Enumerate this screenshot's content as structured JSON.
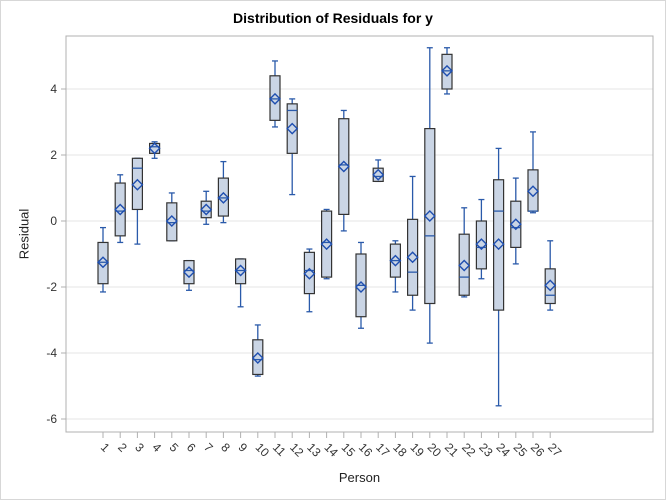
{
  "chart_data": {
    "type": "box",
    "title": "Distribution of Residuals for y",
    "xlabel": "Person",
    "ylabel": "Residual",
    "ylim": [
      -6.4,
      5.5
    ],
    "yticks": [
      -6,
      -4,
      -2,
      0,
      2,
      4
    ],
    "grid": true,
    "categories": [
      "1",
      "2",
      "3",
      "4",
      "5",
      "6",
      "7",
      "8",
      "9",
      "10",
      "11",
      "12",
      "13",
      "14",
      "15",
      "16",
      "17",
      "18",
      "19",
      "20",
      "21",
      "22",
      "23",
      "24",
      "25",
      "26",
      "27"
    ],
    "series": [
      {
        "person": "1",
        "min": -2.15,
        "q1": -1.9,
        "median": -1.25,
        "q3": -0.65,
        "max": -0.2,
        "mean": -1.25
      },
      {
        "person": "2",
        "min": -0.65,
        "q1": -0.45,
        "median": 0.3,
        "q3": 1.15,
        "max": 1.4,
        "mean": 0.35
      },
      {
        "person": "3",
        "min": -0.7,
        "q1": 0.35,
        "median": 1.6,
        "q3": 1.9,
        "max": 1.9,
        "mean": 1.1
      },
      {
        "person": "4",
        "min": 1.9,
        "q1": 2.05,
        "median": 2.25,
        "q3": 2.35,
        "max": 2.4,
        "mean": 2.2
      },
      {
        "person": "5",
        "min": -0.6,
        "q1": -0.6,
        "median": -0.05,
        "q3": 0.55,
        "max": 0.85,
        "mean": 0.0
      },
      {
        "person": "6",
        "min": -2.1,
        "q1": -1.9,
        "median": -1.5,
        "q3": -1.2,
        "max": -1.2,
        "mean": -1.55
      },
      {
        "person": "7",
        "min": -0.1,
        "q1": 0.1,
        "median": 0.3,
        "q3": 0.6,
        "max": 0.9,
        "mean": 0.35
      },
      {
        "person": "8",
        "min": -0.05,
        "q1": 0.15,
        "median": 0.7,
        "q3": 1.3,
        "max": 1.8,
        "mean": 0.7
      },
      {
        "person": "9",
        "min": -2.6,
        "q1": -1.9,
        "median": -1.5,
        "q3": -1.15,
        "max": -1.15,
        "mean": -1.5
      },
      {
        "person": "10",
        "min": -4.7,
        "q1": -4.65,
        "median": -4.2,
        "q3": -3.6,
        "max": -3.15,
        "mean": -4.15
      },
      {
        "person": "11",
        "min": 2.85,
        "q1": 3.05,
        "median": 3.7,
        "q3": 4.4,
        "max": 4.85,
        "mean": 3.7
      },
      {
        "person": "12",
        "min": 0.8,
        "q1": 2.05,
        "median": 3.35,
        "q3": 3.55,
        "max": 3.7,
        "mean": 2.8
      },
      {
        "person": "13",
        "min": -2.75,
        "q1": -2.2,
        "median": -1.5,
        "q3": -0.95,
        "max": -0.85,
        "mean": -1.6
      },
      {
        "person": "14",
        "min": -1.75,
        "q1": -1.7,
        "median": -0.65,
        "q3": 0.3,
        "max": 0.35,
        "mean": -0.7
      },
      {
        "person": "15",
        "min": -0.3,
        "q1": 0.2,
        "median": 1.7,
        "q3": 3.1,
        "max": 3.35,
        "mean": 1.65
      },
      {
        "person": "16",
        "min": -3.25,
        "q1": -2.9,
        "median": -1.95,
        "q3": -1.0,
        "max": -0.65,
        "mean": -2.0
      },
      {
        "person": "17",
        "min": 1.2,
        "q1": 1.2,
        "median": 1.35,
        "q3": 1.6,
        "max": 1.85,
        "mean": 1.4
      },
      {
        "person": "18",
        "min": -2.15,
        "q1": -1.7,
        "median": -1.2,
        "q3": -0.7,
        "max": -0.6,
        "mean": -1.2
      },
      {
        "person": "19",
        "min": -2.7,
        "q1": -2.25,
        "median": -1.55,
        "q3": 0.05,
        "max": 1.35,
        "mean": -1.1
      },
      {
        "person": "20",
        "min": -3.7,
        "q1": -2.5,
        "median": -0.45,
        "q3": 2.8,
        "max": 5.25,
        "mean": 0.15
      },
      {
        "person": "21",
        "min": 3.85,
        "q1": 4.0,
        "median": 4.55,
        "q3": 5.05,
        "max": 5.25,
        "mean": 4.55
      },
      {
        "person": "22",
        "min": -2.3,
        "q1": -2.25,
        "median": -1.7,
        "q3": -0.4,
        "max": 0.4,
        "mean": -1.35
      },
      {
        "person": "23",
        "min": -1.75,
        "q1": -1.45,
        "median": -0.8,
        "q3": 0.0,
        "max": 0.65,
        "mean": -0.7
      },
      {
        "person": "24",
        "min": -5.6,
        "q1": -2.7,
        "median": 0.3,
        "q3": 1.25,
        "max": 2.2,
        "mean": -0.7
      },
      {
        "person": "25",
        "min": -1.3,
        "q1": -0.8,
        "median": -0.2,
        "q3": 0.6,
        "max": 1.3,
        "mean": -0.1
      },
      {
        "person": "26",
        "min": 0.25,
        "q1": 0.3,
        "median": 0.3,
        "q3": 1.55,
        "max": 2.7,
        "mean": 0.9
      },
      {
        "person": "27",
        "min": -2.7,
        "q1": -2.5,
        "median": -2.25,
        "q3": -1.45,
        "max": -0.6,
        "mean": -1.95
      }
    ]
  },
  "style": {
    "box_fill": "#cad5e5",
    "box_stroke": "#333333",
    "whisker_color": "#2a5aaa",
    "mean_marker_color": "#1f4fb0",
    "grid_color": "#e6e6e6",
    "axis_color": "#b0b0b0"
  }
}
